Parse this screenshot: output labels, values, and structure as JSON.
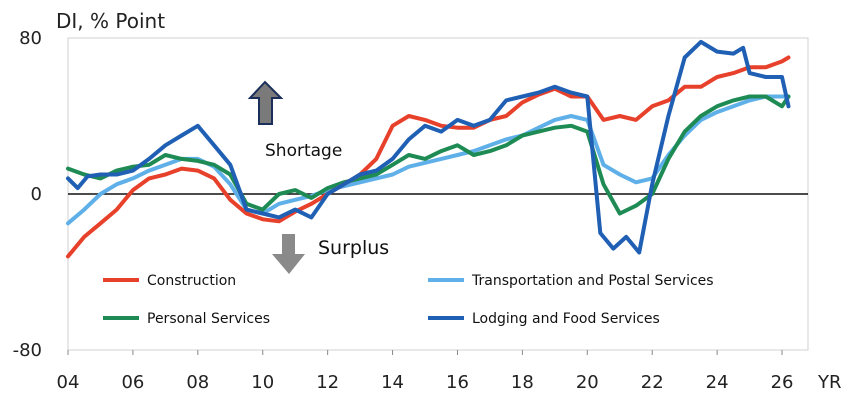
{
  "chart_data": {
    "type": "line",
    "ylabel": "DI, % Point",
    "xlabel": "YR",
    "xlim": [
      2004,
      2026.8
    ],
    "ylim": [
      -80,
      80
    ],
    "x_ticks": [
      2004,
      2006,
      2008,
      2010,
      2012,
      2014,
      2016,
      2018,
      2020,
      2022,
      2024,
      2026
    ],
    "x_tick_labels": [
      "04",
      "06",
      "08",
      "10",
      "12",
      "14",
      "16",
      "18",
      "20",
      "22",
      "24",
      "26"
    ],
    "y_ticks": [
      80,
      0,
      -80
    ],
    "y_tick_labels": [
      "80",
      "0",
      "-80"
    ],
    "annotations": {
      "shortage": "Shortage",
      "surplus": "Surplus"
    },
    "legend_position": "bottom",
    "series": [
      {
        "name": "Construction",
        "color": "#e8412b",
        "points": [
          [
            2004.0,
            -32
          ],
          [
            2004.5,
            -22
          ],
          [
            2005.0,
            -15
          ],
          [
            2005.5,
            -8
          ],
          [
            2006.0,
            2
          ],
          [
            2006.5,
            8
          ],
          [
            2007.0,
            10
          ],
          [
            2007.5,
            13
          ],
          [
            2008.0,
            12
          ],
          [
            2008.5,
            8
          ],
          [
            2009.0,
            -3
          ],
          [
            2009.5,
            -10
          ],
          [
            2010.0,
            -13
          ],
          [
            2010.5,
            -14
          ],
          [
            2011.0,
            -9
          ],
          [
            2011.5,
            -5
          ],
          [
            2012.0,
            0
          ],
          [
            2012.5,
            5
          ],
          [
            2013.0,
            10
          ],
          [
            2013.5,
            18
          ],
          [
            2014.0,
            35
          ],
          [
            2014.5,
            40
          ],
          [
            2015.0,
            38
          ],
          [
            2015.5,
            35
          ],
          [
            2016.0,
            34
          ],
          [
            2016.5,
            34
          ],
          [
            2017.0,
            38
          ],
          [
            2017.5,
            40
          ],
          [
            2018.0,
            47
          ],
          [
            2018.5,
            51
          ],
          [
            2019.0,
            54
          ],
          [
            2019.5,
            50
          ],
          [
            2020.0,
            50
          ],
          [
            2020.5,
            38
          ],
          [
            2021.0,
            40
          ],
          [
            2021.5,
            38
          ],
          [
            2022.0,
            45
          ],
          [
            2022.5,
            48
          ],
          [
            2023.0,
            55
          ],
          [
            2023.5,
            55
          ],
          [
            2024.0,
            60
          ],
          [
            2024.5,
            62
          ],
          [
            2025.0,
            65
          ],
          [
            2025.5,
            65
          ],
          [
            2026.0,
            68
          ],
          [
            2026.2,
            70
          ]
        ]
      },
      {
        "name": "Transportation and Postal Services",
        "color": "#5fb0e8",
        "points": [
          [
            2004.0,
            -15
          ],
          [
            2004.5,
            -8
          ],
          [
            2005.0,
            0
          ],
          [
            2005.5,
            5
          ],
          [
            2006.0,
            8
          ],
          [
            2006.5,
            12
          ],
          [
            2007.0,
            15
          ],
          [
            2007.5,
            18
          ],
          [
            2008.0,
            18
          ],
          [
            2008.5,
            14
          ],
          [
            2009.0,
            5
          ],
          [
            2009.5,
            -8
          ],
          [
            2010.0,
            -10
          ],
          [
            2010.5,
            -5
          ],
          [
            2011.0,
            -3
          ],
          [
            2011.5,
            -1
          ],
          [
            2012.0,
            2
          ],
          [
            2012.5,
            4
          ],
          [
            2013.0,
            6
          ],
          [
            2013.5,
            8
          ],
          [
            2014.0,
            10
          ],
          [
            2014.5,
            14
          ],
          [
            2015.0,
            16
          ],
          [
            2015.5,
            18
          ],
          [
            2016.0,
            20
          ],
          [
            2016.5,
            22
          ],
          [
            2017.0,
            25
          ],
          [
            2017.5,
            28
          ],
          [
            2018.0,
            30
          ],
          [
            2018.5,
            34
          ],
          [
            2019.0,
            38
          ],
          [
            2019.5,
            40
          ],
          [
            2020.0,
            38
          ],
          [
            2020.5,
            15
          ],
          [
            2021.0,
            10
          ],
          [
            2021.5,
            6
          ],
          [
            2022.0,
            8
          ],
          [
            2022.5,
            20
          ],
          [
            2023.0,
            30
          ],
          [
            2023.5,
            38
          ],
          [
            2024.0,
            42
          ],
          [
            2024.5,
            45
          ],
          [
            2025.0,
            48
          ],
          [
            2025.5,
            50
          ],
          [
            2026.0,
            50
          ],
          [
            2026.2,
            50
          ]
        ]
      },
      {
        "name": "Personal Services",
        "color": "#1e8b55",
        "points": [
          [
            2004.0,
            13
          ],
          [
            2004.5,
            10
          ],
          [
            2005.0,
            8
          ],
          [
            2005.5,
            12
          ],
          [
            2006.0,
            14
          ],
          [
            2006.5,
            15
          ],
          [
            2007.0,
            20
          ],
          [
            2007.5,
            18
          ],
          [
            2008.0,
            17
          ],
          [
            2008.5,
            15
          ],
          [
            2009.0,
            10
          ],
          [
            2009.5,
            -5
          ],
          [
            2010.0,
            -8
          ],
          [
            2010.5,
            0
          ],
          [
            2011.0,
            2
          ],
          [
            2011.5,
            -2
          ],
          [
            2012.0,
            3
          ],
          [
            2012.5,
            6
          ],
          [
            2013.0,
            8
          ],
          [
            2013.5,
            10
          ],
          [
            2014.0,
            15
          ],
          [
            2014.5,
            20
          ],
          [
            2015.0,
            18
          ],
          [
            2015.5,
            22
          ],
          [
            2016.0,
            25
          ],
          [
            2016.5,
            20
          ],
          [
            2017.0,
            22
          ],
          [
            2017.5,
            25
          ],
          [
            2018.0,
            30
          ],
          [
            2018.5,
            32
          ],
          [
            2019.0,
            34
          ],
          [
            2019.5,
            35
          ],
          [
            2020.0,
            32
          ],
          [
            2020.5,
            5
          ],
          [
            2021.0,
            -10
          ],
          [
            2021.5,
            -6
          ],
          [
            2022.0,
            0
          ],
          [
            2022.5,
            18
          ],
          [
            2023.0,
            32
          ],
          [
            2023.5,
            40
          ],
          [
            2024.0,
            45
          ],
          [
            2024.5,
            48
          ],
          [
            2025.0,
            50
          ],
          [
            2025.5,
            50
          ],
          [
            2026.0,
            45
          ],
          [
            2026.2,
            50
          ]
        ]
      },
      {
        "name": "Lodging and Food Services",
        "color": "#1f5fb4",
        "points": [
          [
            2004.0,
            8
          ],
          [
            2004.3,
            3
          ],
          [
            2004.6,
            9
          ],
          [
            2005.0,
            10
          ],
          [
            2005.5,
            10
          ],
          [
            2006.0,
            12
          ],
          [
            2006.5,
            18
          ],
          [
            2007.0,
            25
          ],
          [
            2007.5,
            30
          ],
          [
            2008.0,
            35
          ],
          [
            2008.5,
            25
          ],
          [
            2009.0,
            15
          ],
          [
            2009.5,
            -8
          ],
          [
            2010.0,
            -10
          ],
          [
            2010.5,
            -12
          ],
          [
            2011.0,
            -8
          ],
          [
            2011.5,
            -12
          ],
          [
            2012.0,
            0
          ],
          [
            2012.5,
            5
          ],
          [
            2013.0,
            10
          ],
          [
            2013.5,
            12
          ],
          [
            2014.0,
            18
          ],
          [
            2014.5,
            28
          ],
          [
            2015.0,
            35
          ],
          [
            2015.5,
            32
          ],
          [
            2016.0,
            38
          ],
          [
            2016.5,
            35
          ],
          [
            2017.0,
            38
          ],
          [
            2017.5,
            48
          ],
          [
            2018.0,
            50
          ],
          [
            2018.5,
            52
          ],
          [
            2019.0,
            55
          ],
          [
            2019.5,
            52
          ],
          [
            2020.0,
            50
          ],
          [
            2020.4,
            -20
          ],
          [
            2020.8,
            -28
          ],
          [
            2021.2,
            -22
          ],
          [
            2021.6,
            -30
          ],
          [
            2022.0,
            5
          ],
          [
            2022.5,
            40
          ],
          [
            2023.0,
            70
          ],
          [
            2023.5,
            78
          ],
          [
            2024.0,
            73
          ],
          [
            2024.5,
            72
          ],
          [
            2024.8,
            75
          ],
          [
            2025.0,
            62
          ],
          [
            2025.5,
            60
          ],
          [
            2026.0,
            60
          ],
          [
            2026.2,
            45
          ]
        ]
      }
    ]
  }
}
